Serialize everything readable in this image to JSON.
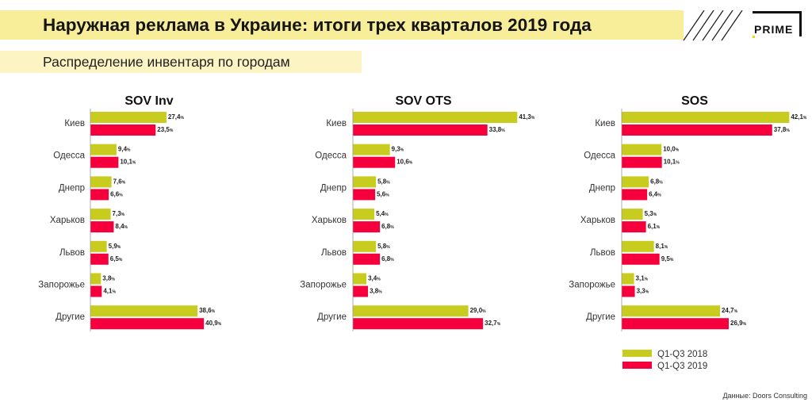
{
  "header": {
    "title": "Наружная реклама в Украине: итоги трех кварталов 2019 года",
    "subtitle": "Распределение инвентаря по городам",
    "logo_text": "PRIME"
  },
  "source": "Данные: Doors Consulting",
  "colors": {
    "series_2018": "#c8cc1e",
    "series_2019": "#f5003c",
    "title_bg": "#f8ee9a",
    "subtitle_bg": "#fdf4c3"
  },
  "chart_data": [
    {
      "type": "bar",
      "orientation": "horizontal",
      "title": "SOV Inv",
      "categories": [
        "Киев",
        "Одесса",
        "Днепр",
        "Харьков",
        "Львов",
        "Запорожье",
        "Другие"
      ],
      "series": [
        {
          "name": "Q1-Q3 2018",
          "values": [
            27.4,
            9.4,
            7.6,
            7.3,
            5.9,
            3.8,
            38.6
          ],
          "labels": [
            "27,4",
            "9,4",
            "7,6",
            "7,3",
            "5,9",
            "3,8",
            "38,6"
          ]
        },
        {
          "name": "Q1-Q3 2019",
          "values": [
            23.5,
            10.1,
            6.6,
            8.4,
            6.5,
            4.1,
            40.9
          ],
          "labels": [
            "23,5",
            "10,1",
            "6,6",
            "8,4",
            "6,5",
            "4,1",
            "40,9"
          ]
        }
      ],
      "unit": "%"
    },
    {
      "type": "bar",
      "orientation": "horizontal",
      "title": "SOV OTS",
      "categories": [
        "Киев",
        "Одесса",
        "Днепр",
        "Харьков",
        "Львов",
        "Запорожье",
        "Другие"
      ],
      "series": [
        {
          "name": "Q1-Q3 2018",
          "values": [
            41.3,
            9.3,
            5.8,
            5.4,
            5.8,
            3.4,
            29.0
          ],
          "labels": [
            "41,3",
            "9,3",
            "5,8",
            "5,4",
            "5,8",
            "3,4",
            "29,0"
          ]
        },
        {
          "name": "Q1-Q3 2019",
          "values": [
            33.8,
            10.6,
            5.6,
            6.8,
            6.8,
            3.8,
            32.7
          ],
          "labels": [
            "33,8",
            "10,6",
            "5,6",
            "6,8",
            "6,8",
            "3,8",
            "32,7"
          ]
        }
      ],
      "unit": "%"
    },
    {
      "type": "bar",
      "orientation": "horizontal",
      "title": "SOS",
      "categories": [
        "Киев",
        "Одесса",
        "Днепр",
        "Харьков",
        "Львов",
        "Запорожье",
        "Другие"
      ],
      "series": [
        {
          "name": "Q1-Q3 2018",
          "values": [
            42.1,
            10.0,
            6.8,
            5.3,
            8.1,
            3.1,
            24.7
          ],
          "labels": [
            "42,1",
            "10,0",
            "6,8",
            "5,3",
            "8,1",
            "3,1",
            "24,7"
          ]
        },
        {
          "name": "Q1-Q3 2019",
          "values": [
            37.8,
            10.1,
            6.4,
            6.1,
            9.5,
            3.3,
            26.9
          ],
          "labels": [
            "37,8",
            "10,1",
            "6,4",
            "6,1",
            "9,5",
            "3,3",
            "26,9"
          ]
        }
      ],
      "unit": "%"
    }
  ],
  "legend": {
    "position": "bottom-right",
    "items": [
      "Q1-Q3 2018",
      "Q1-Q3 2019"
    ]
  }
}
